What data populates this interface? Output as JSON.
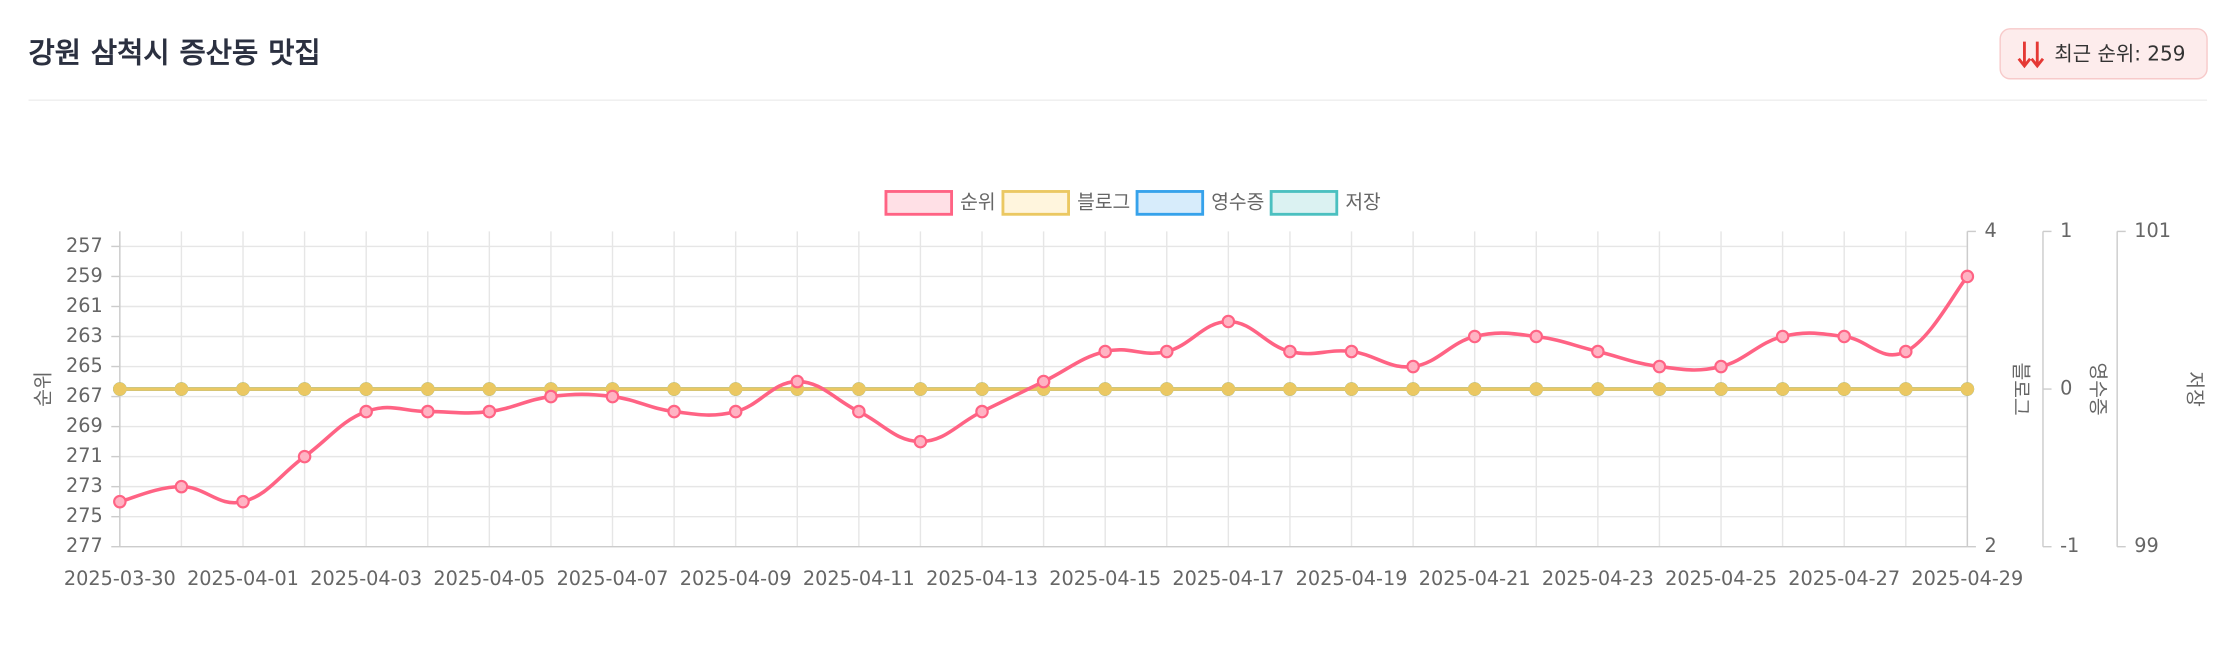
{
  "header": {
    "title": "강원 삼척시 증산동 맛집",
    "badge": {
      "label": "최근 순위:",
      "value": 259
    }
  },
  "chart_data": {
    "type": "line",
    "categories": [
      "2025-03-30",
      null,
      "2025-04-01",
      null,
      "2025-04-03",
      null,
      "2025-04-05",
      null,
      "2025-04-07",
      null,
      "2025-04-09",
      null,
      "2025-04-11",
      null,
      "2025-04-13",
      null,
      "2025-04-15",
      null,
      "2025-04-17",
      null,
      "2025-04-19",
      null,
      "2025-04-21",
      null,
      "2025-04-23",
      null,
      "2025-04-25",
      null,
      "2025-04-27",
      null,
      "2025-04-29"
    ],
    "series": [
      {
        "name": "순위",
        "color": "#ff6384",
        "fill": "#ffe0e6",
        "axis": "y",
        "values": [
          274,
          273,
          274,
          271,
          268,
          268,
          268,
          267,
          267,
          268,
          268,
          266,
          268,
          270,
          268,
          266,
          264,
          264,
          262,
          264,
          264,
          265,
          263,
          263,
          264,
          265,
          265,
          263,
          263,
          264,
          259
        ]
      },
      {
        "name": "블로그",
        "color": "#ebc862",
        "fill": "#fff5dd",
        "axis": "y2",
        "values": [
          3,
          3,
          3,
          3,
          3,
          3,
          3,
          3,
          3,
          3,
          3,
          3,
          3,
          3,
          3,
          3,
          3,
          3,
          3,
          3,
          3,
          3,
          3,
          3,
          3,
          3,
          3,
          3,
          3,
          3,
          3
        ]
      },
      {
        "name": "영수증",
        "color": "#36a2eb",
        "fill": "#d7ecfb",
        "axis": "y3",
        "values": [
          0,
          0,
          0,
          0,
          0,
          0,
          0,
          0,
          0,
          0,
          0,
          0,
          0,
          0,
          0,
          0,
          0,
          0,
          0,
          0,
          0,
          0,
          0,
          0,
          0,
          0,
          0,
          0,
          0,
          0,
          0
        ]
      },
      {
        "name": "저장",
        "color": "#4bc0c0",
        "fill": "#dbf2f2",
        "axis": "y4",
        "values": [
          100,
          100,
          100,
          100,
          100,
          100,
          100,
          100,
          100,
          100,
          100,
          100,
          100,
          100,
          100,
          100,
          100,
          100,
          100,
          100,
          100,
          100,
          100,
          100,
          100,
          100,
          100,
          100,
          100,
          100,
          100
        ]
      }
    ],
    "ylabel": "순위",
    "ylim": [
      256,
      277
    ],
    "y_reversed": true,
    "yticks": [
      257,
      259,
      261,
      263,
      265,
      267,
      269,
      271,
      273,
      275,
      277
    ],
    "y2label": "블로그",
    "y2lim": [
      2,
      4
    ],
    "y2ticks": [
      2,
      4
    ],
    "y3label": "영수증",
    "y3lim": [
      -1,
      1
    ],
    "y3ticks": [
      -1,
      0,
      1
    ],
    "y4label": "저장",
    "y4lim": [
      99,
      101
    ],
    "y4ticks": [
      99,
      101
    ],
    "grid": true,
    "legend": "top"
  }
}
